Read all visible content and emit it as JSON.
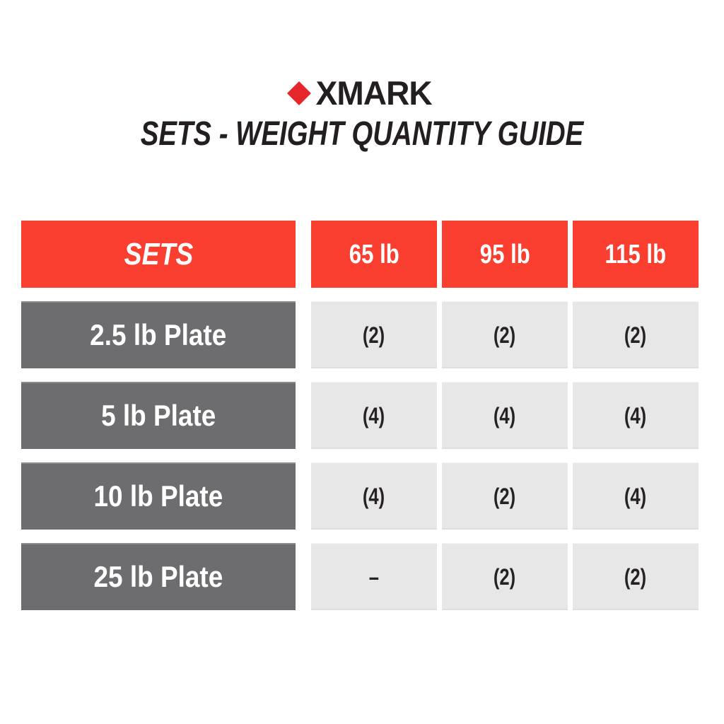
{
  "brand": {
    "logo_text": "XMARK",
    "diamond_color": "#e5262b",
    "text_color": "#231f20"
  },
  "title": "SETS - WEIGHT QUANTITY GUIDE",
  "table": {
    "header": {
      "label": "SETS",
      "columns": [
        "65 lb",
        "95 lb",
        "115 lb"
      ]
    },
    "rows": [
      {
        "label": "2.5 lb Plate",
        "values": [
          "(2)",
          "(2)",
          "(2)"
        ]
      },
      {
        "label": "5 lb Plate",
        "values": [
          "(4)",
          "(4)",
          "(4)"
        ]
      },
      {
        "label": "10 lb Plate",
        "values": [
          "(4)",
          "(2)",
          "(4)"
        ]
      },
      {
        "label": "25 lb Plate",
        "values": [
          "–",
          "(2)",
          "(2)"
        ]
      }
    ]
  },
  "colors": {
    "header_red": "#fa3e2f",
    "row_label_gray": "#6d6d70",
    "cell_gray": "#e7e7e8",
    "cell_text": "#262224",
    "header_text": "#ffffff"
  },
  "chart_data": {
    "type": "table",
    "title": "SETS - WEIGHT QUANTITY GUIDE",
    "columns": [
      "SETS",
      "65 lb",
      "95 lb",
      "115 lb"
    ],
    "rows": [
      [
        "2.5 lb Plate",
        "(2)",
        "(2)",
        "(2)"
      ],
      [
        "5 lb Plate",
        "(4)",
        "(4)",
        "(4)"
      ],
      [
        "10 lb Plate",
        "(4)",
        "(2)",
        "(4)"
      ],
      [
        "25 lb Plate",
        "–",
        "(2)",
        "(2)"
      ]
    ]
  }
}
